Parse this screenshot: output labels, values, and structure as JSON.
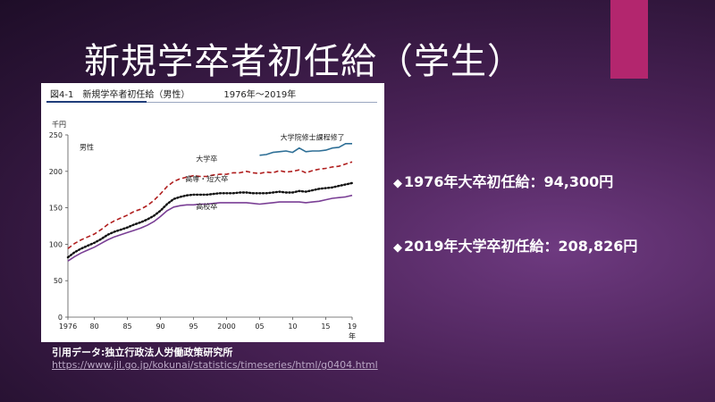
{
  "slide": {
    "title": "新規学卒者初任給（学生）",
    "bullets": [
      "1976年大卒初任給：94,300円",
      "2019年大学卒初任給：208,826円"
    ],
    "source_label": "引用データ:独立行政法人労働政策研究所",
    "source_url": "https://www.jil.go.jp/kokunai/statistics/timeseries/html/g0404.html",
    "accent_color": "#b3266e"
  },
  "figure": {
    "number": "図4-1",
    "title": "新規学卒者初任給（男性）",
    "period": "1976年～2019年"
  },
  "chart_data": {
    "type": "line",
    "title": "新規学卒者初任給（男性）",
    "ylabel": "千円",
    "xlabel": "年",
    "panel_label": "男性",
    "ylim": [
      0,
      250
    ],
    "yticks": [
      0,
      50,
      100,
      150,
      200,
      250
    ],
    "xticks": [
      1976,
      1980,
      1985,
      1990,
      1995,
      2000,
      2005,
      2010,
      2015,
      2019
    ],
    "xtick_labels": [
      "1976",
      "80",
      "85",
      "90",
      "95",
      "2000",
      "05",
      "10",
      "15",
      "19"
    ],
    "grid": false,
    "series": [
      {
        "name": "大学院修士課程修了",
        "style": "solid",
        "color": "#2e6f96",
        "x": [
          2005,
          2006,
          2007,
          2008,
          2009,
          2010,
          2011,
          2012,
          2013,
          2014,
          2015,
          2016,
          2017,
          2018,
          2019
        ],
        "values": [
          222,
          223,
          226,
          227,
          228,
          226,
          232,
          227,
          228,
          228,
          229,
          232,
          233,
          238,
          238
        ]
      },
      {
        "name": "大学卒",
        "style": "dashed",
        "color": "#b01e1e",
        "x": [
          1976,
          1977,
          1978,
          1979,
          1980,
          1981,
          1982,
          1983,
          1984,
          1985,
          1986,
          1987,
          1988,
          1989,
          1990,
          1991,
          1992,
          1993,
          1994,
          1995,
          1996,
          1997,
          1998,
          1999,
          2000,
          2001,
          2002,
          2003,
          2004,
          2005,
          2006,
          2007,
          2008,
          2009,
          2010,
          2011,
          2012,
          2013,
          2014,
          2015,
          2016,
          2017,
          2018,
          2019
        ],
        "values": [
          94,
          101,
          106,
          110,
          114,
          120,
          127,
          132,
          136,
          140,
          145,
          148,
          153,
          160,
          169,
          179,
          186,
          190,
          192,
          194,
          193,
          193,
          195,
          196,
          196,
          198,
          198,
          200,
          198,
          197,
          199,
          198,
          201,
          199,
          200,
          202,
          198,
          201,
          203,
          204,
          206,
          207,
          210,
          213
        ]
      },
      {
        "name": "高専・短大卒",
        "style": "dotted",
        "color": "#111111",
        "x": [
          1976,
          1977,
          1978,
          1979,
          1980,
          1981,
          1982,
          1983,
          1984,
          1985,
          1986,
          1987,
          1988,
          1989,
          1990,
          1991,
          1992,
          1993,
          1994,
          1995,
          1996,
          1997,
          1998,
          1999,
          2000,
          2001,
          2002,
          2003,
          2004,
          2005,
          2006,
          2007,
          2008,
          2009,
          2010,
          2011,
          2012,
          2013,
          2014,
          2015,
          2016,
          2017,
          2018,
          2019
        ],
        "values": [
          82,
          89,
          94,
          98,
          102,
          107,
          113,
          117,
          120,
          123,
          127,
          130,
          134,
          139,
          146,
          155,
          162,
          165,
          167,
          168,
          168,
          168,
          169,
          170,
          170,
          170,
          171,
          171,
          170,
          170,
          170,
          171,
          172,
          171,
          171,
          173,
          172,
          174,
          176,
          177,
          178,
          180,
          182,
          184
        ]
      },
      {
        "name": "高校卒",
        "style": "solid",
        "color": "#7a3f95",
        "x": [
          1976,
          1977,
          1978,
          1979,
          1980,
          1981,
          1982,
          1983,
          1984,
          1985,
          1986,
          1987,
          1988,
          1989,
          1990,
          1991,
          1992,
          1993,
          1994,
          1995,
          1996,
          1997,
          1998,
          1999,
          2000,
          2001,
          2002,
          2003,
          2004,
          2005,
          2006,
          2007,
          2008,
          2009,
          2010,
          2011,
          2012,
          2013,
          2014,
          2015,
          2016,
          2017,
          2018,
          2019
        ],
        "values": [
          77,
          83,
          88,
          92,
          96,
          101,
          106,
          110,
          113,
          116,
          119,
          122,
          126,
          131,
          138,
          146,
          151,
          153,
          154,
          154,
          155,
          155,
          156,
          157,
          157,
          157,
          157,
          157,
          156,
          155,
          156,
          157,
          158,
          158,
          158,
          158,
          157,
          158,
          159,
          161,
          163,
          164,
          165,
          167
        ]
      }
    ]
  }
}
